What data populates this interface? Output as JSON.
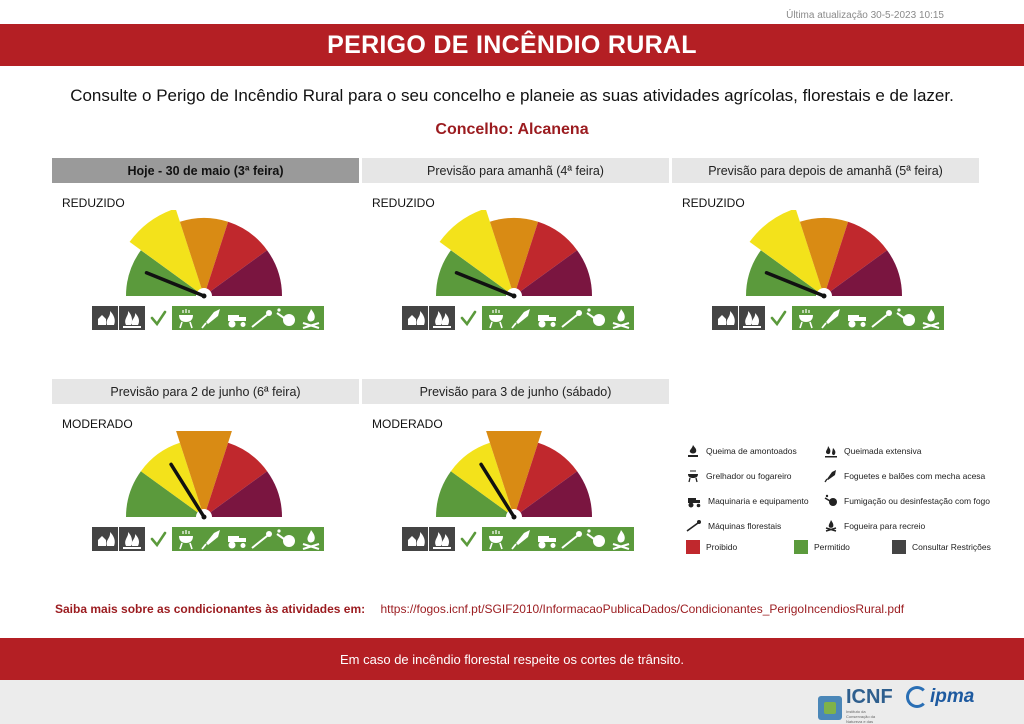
{
  "header": {
    "updated": "Última atualização 30-5-2023 10:15",
    "title": "PERIGO DE INCÊNDIO RURAL",
    "intro": "Consulte o Perigo de Incêndio Rural para o seu concelho e planeie as suas atividades agrícolas, florestais e de lazer.",
    "concelho": "Concelho: Alcanena"
  },
  "colors": {
    "brand_red": "#b41f24",
    "green": "#5b9a3c",
    "yellow": "#f3e21b",
    "orange": "#d98b14",
    "red": "#c0282d",
    "purple": "#7a1540",
    "restricted": "#444444"
  },
  "panels": [
    {
      "title": "Hoje - 30 de maio (3ª feira)",
      "level": "REDUZIDO",
      "level_index": 1,
      "is_today": true
    },
    {
      "title": "Previsão para amanhã (4ª feira)",
      "level": "REDUZIDO",
      "level_index": 1,
      "is_today": false
    },
    {
      "title": "Previsão para depois de amanhã (5ª feira)",
      "level": "REDUZIDO",
      "level_index": 1,
      "is_today": false
    },
    {
      "title": "Previsão para 2 de junho (6ª feira)",
      "level": "MODERADO",
      "level_index": 2,
      "is_today": false
    },
    {
      "title": "Previsão para 3 de junho (sábado)",
      "level": "MODERADO",
      "level_index": 2,
      "is_today": false
    }
  ],
  "activities_status": {
    "restricted": [
      "queima-de-amontoados",
      "queimada-extensiva"
    ],
    "permitted": [
      "grelhador-ou-fogareiro",
      "foguetes-e-baloes",
      "maquinaria-e-equipamento",
      "maquinas-florestais",
      "fumigacao",
      "fogueira-para-recreio"
    ]
  },
  "legend": {
    "items": [
      {
        "label": "Queima de amontoados",
        "icon": "pile-burning-icon"
      },
      {
        "label": "Queimada extensiva",
        "icon": "extensive-burning-icon"
      },
      {
        "label": "Grelhador ou fogareiro",
        "icon": "grill-icon"
      },
      {
        "label": "Foguetes e balões com mecha acesa",
        "icon": "rocket-icon"
      },
      {
        "label": "Maquinaria e equipamento",
        "icon": "tractor-icon"
      },
      {
        "label": "Fumigação ou desinfestação com fogo",
        "icon": "fumigation-icon"
      },
      {
        "label": "Máquinas florestais",
        "icon": "forest-machine-icon"
      },
      {
        "label": "Fogueira para recreio",
        "icon": "campfire-icon"
      }
    ],
    "status": [
      {
        "label": "Proibido",
        "color": "#c0282d"
      },
      {
        "label": "Permitido",
        "color": "#5b9a3c"
      },
      {
        "label": "Consultar Restrições",
        "color": "#444444"
      }
    ]
  },
  "more": {
    "label": "Saiba mais sobre as condicionantes às atividades em:",
    "url": "https://fogos.icnf.pt/SGIF2010/InformacaoPublicaDados/Condicionantes_PerigoIncendiosRural.pdf"
  },
  "footer": {
    "message": "Em caso de incêndio florestal respeite os cortes de trânsito.",
    "logo_icnf": "ICNF",
    "logo_icnf_sub": "Instituto da Conservação da Natureza e das Florestas",
    "logo_ipma": "ipma"
  }
}
